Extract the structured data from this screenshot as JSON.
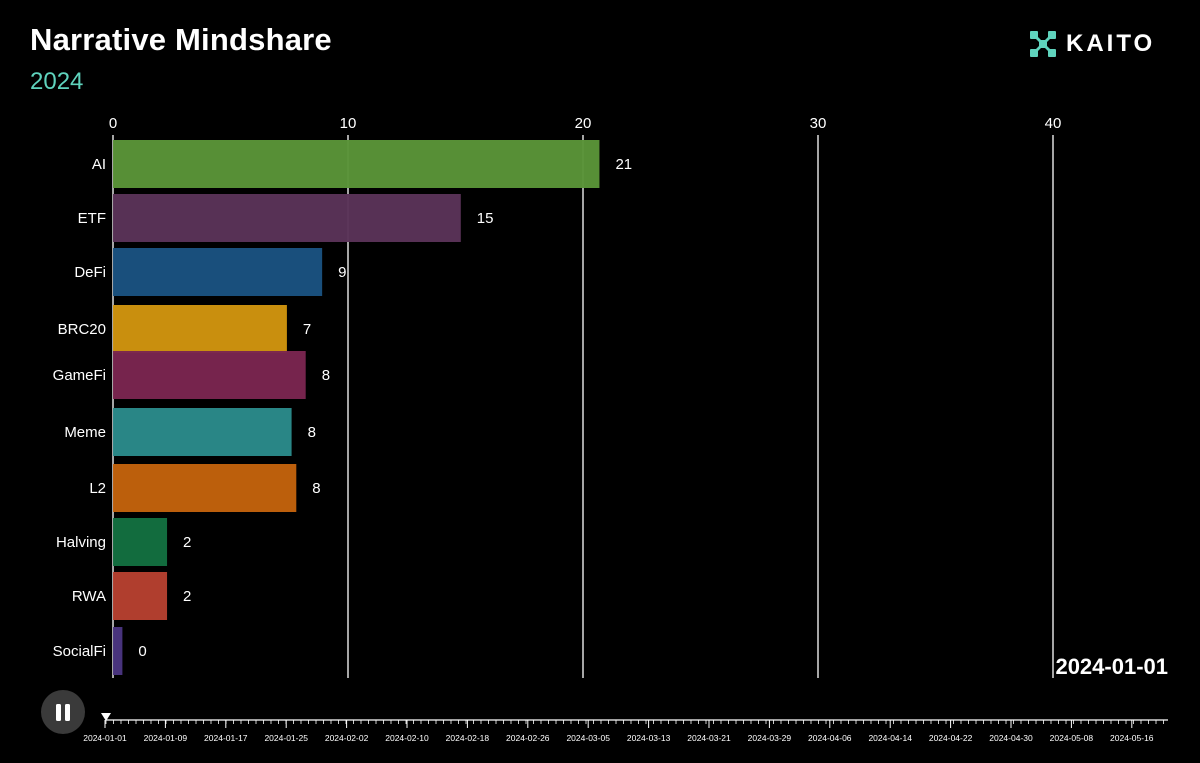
{
  "header": {
    "title": "Narrative Mindshare",
    "subtitle": "2024",
    "logo_text": "KAITO"
  },
  "current_date": "2024-01-01",
  "controls": {
    "play_state": "playing",
    "icon": "pause-icon"
  },
  "colors": {
    "accent": "#5fd3bd",
    "background": "#000000"
  },
  "chart_data": {
    "type": "bar",
    "orientation": "horizontal",
    "title": "Narrative Mindshare",
    "subtitle": "2024",
    "xlim": [
      0,
      45
    ],
    "xticks": [
      0,
      10,
      20,
      30,
      40
    ],
    "grid": true,
    "categories": [
      "AI",
      "ETF",
      "DeFi",
      "BRC20",
      "GameFi",
      "Meme",
      "L2",
      "Halving",
      "RWA",
      "SocialFi"
    ],
    "values": [
      20.7,
      14.8,
      8.9,
      7.4,
      8.2,
      7.6,
      7.8,
      2.3,
      2.3,
      0.4
    ],
    "value_labels": [
      "21",
      "15",
      "9",
      "7",
      "8",
      "8",
      "8",
      "2",
      "2",
      "0"
    ],
    "bar_colors": [
      "#5a9438",
      "#5a3358",
      "#1a5280",
      "#d0940e",
      "#7a2550",
      "#2a8a8a",
      "#c2620c",
      "#137040",
      "#b64030",
      "#4a3580"
    ],
    "timeline": {
      "current": "2024-01-01",
      "labels": [
        "2024-01-01",
        "2024-01-09",
        "2024-01-17",
        "2024-01-25",
        "2024-02-02",
        "2024-02-10",
        "2024-02-18",
        "2024-02-26",
        "2024-03-05",
        "2024-03-13",
        "2024-03-21",
        "2024-03-29",
        "2024-04-06",
        "2024-04-14",
        "2024-04-22",
        "2024-04-30",
        "2024-05-08",
        "2024-05-16"
      ]
    }
  }
}
